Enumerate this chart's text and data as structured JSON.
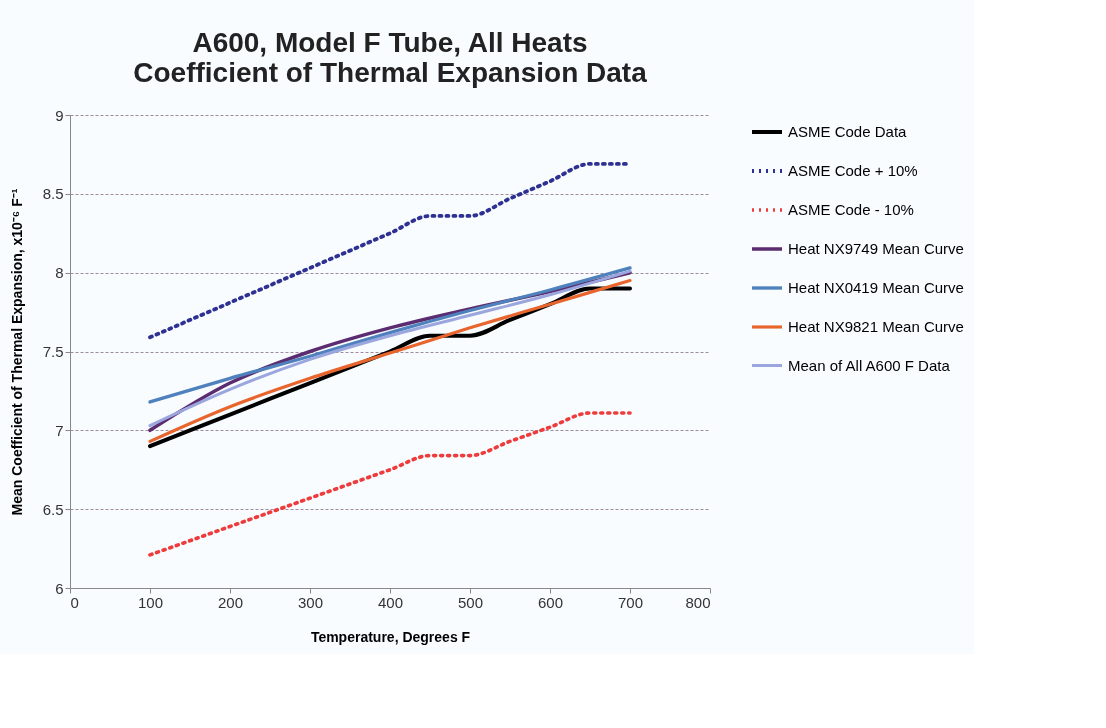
{
  "chart_data": {
    "type": "line",
    "title": [
      "A600, Model F Tube, All Heats",
      "Coefficient of Thermal Expansion Data"
    ],
    "xlabel": "Temperature, Degrees F",
    "ylabel": "Mean Coefficient of Thermal Expansion, x10⁻⁶ F⁻¹",
    "xlim": [
      0,
      800
    ],
    "xticks": [
      0,
      100,
      200,
      300,
      400,
      500,
      600,
      700,
      800
    ],
    "ylim": [
      6,
      9
    ],
    "yticks": [
      6,
      6.5,
      7,
      7.5,
      8,
      8.5,
      9
    ],
    "grid": "y",
    "legend": "right",
    "marker": "none",
    "series": [
      {
        "name": "ASME Code Data",
        "color": "#000000",
        "line_style": "solid",
        "x": [
          100,
          200,
          300,
          400,
          450,
          500,
          550,
          600,
          650,
          700
        ],
        "values": [
          6.9,
          7.1,
          7.3,
          7.5,
          7.6,
          7.6,
          7.7,
          7.8,
          7.9,
          7.9
        ]
      },
      {
        "name": "ASME Code + 10%",
        "color": "#2e3192",
        "line_style": "dotted",
        "x": [
          100,
          200,
          300,
          400,
          450,
          500,
          550,
          600,
          650,
          700
        ],
        "values": [
          7.59,
          7.81,
          8.03,
          8.25,
          8.36,
          8.36,
          8.47,
          8.58,
          8.69,
          8.69
        ]
      },
      {
        "name": "ASME Code - 10%",
        "color": "#ee3b3b",
        "line_style": "dotted",
        "x": [
          100,
          200,
          300,
          400,
          450,
          500,
          550,
          600,
          650,
          700
        ],
        "values": [
          6.21,
          6.39,
          6.57,
          6.75,
          6.84,
          6.84,
          6.93,
          7.02,
          7.11,
          7.11
        ]
      },
      {
        "name": "Heat NX9749 Mean Curve",
        "color": "#5b2c6f",
        "line_style": "solid",
        "x": [
          100,
          200,
          300,
          400,
          500,
          600,
          700
        ],
        "values": [
          7.0,
          7.3,
          7.5,
          7.65,
          7.77,
          7.88,
          8.0
        ]
      },
      {
        "name": "Heat NX0419 Mean Curve",
        "color": "#4f81bd",
        "line_style": "solid",
        "x": [
          100,
          200,
          300,
          400,
          500,
          600,
          700
        ],
        "values": [
          7.18,
          7.33,
          7.47,
          7.62,
          7.76,
          7.89,
          8.03
        ]
      },
      {
        "name": "Heat NX9821 Mean Curve",
        "color": "#e8662d",
        "line_style": "solid",
        "x": [
          100,
          200,
          300,
          400,
          500,
          600,
          700
        ],
        "values": [
          6.93,
          7.15,
          7.33,
          7.49,
          7.65,
          7.8,
          7.95
        ]
      },
      {
        "name": "Mean of All A600 F Data",
        "color": "#9aa6dd",
        "line_style": "solid",
        "x": [
          100,
          200,
          300,
          400,
          500,
          600,
          700
        ],
        "values": [
          7.03,
          7.26,
          7.45,
          7.6,
          7.73,
          7.86,
          8.01
        ]
      }
    ]
  }
}
